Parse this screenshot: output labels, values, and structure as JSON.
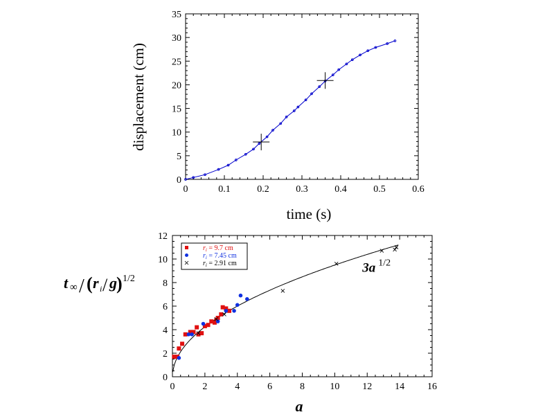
{
  "chart_data": [
    {
      "type": "line",
      "xlabel": "time (s)",
      "ylabel": "displacement (cm)",
      "xlim": [
        0,
        0.6
      ],
      "ylim": [
        0,
        35
      ],
      "x_ticks": [
        "0",
        "0.1",
        "0.2",
        "0.3",
        "0.4",
        "0.5",
        "0.6"
      ],
      "y_ticks": [
        "0",
        "5",
        "10",
        "15",
        "20",
        "25",
        "30",
        "35"
      ],
      "x_tick_values": [
        0,
        0.1,
        0.2,
        0.3,
        0.4,
        0.5,
        0.6
      ],
      "y_tick_values": [
        0,
        5,
        10,
        15,
        20,
        25,
        30,
        35
      ],
      "grid": false,
      "series": [
        {
          "color": "#0000cc",
          "x": [
            0,
            0.02,
            0.05,
            0.085,
            0.11,
            0.13,
            0.155,
            0.175,
            0.19,
            0.21,
            0.225,
            0.245,
            0.26,
            0.28,
            0.29,
            0.31,
            0.325,
            0.345,
            0.36,
            0.38,
            0.395,
            0.415,
            0.43,
            0.45,
            0.47,
            0.49,
            0.52,
            0.54
          ],
          "y": [
            0,
            0.4,
            1.0,
            2.1,
            3.0,
            4.1,
            5.3,
            6.4,
            7.6,
            9.0,
            10.4,
            11.8,
            13.2,
            14.5,
            15.3,
            16.8,
            18.1,
            19.6,
            20.8,
            22.1,
            23.2,
            24.4,
            25.3,
            26.3,
            27.2,
            27.9,
            28.7,
            29.3
          ]
        }
      ],
      "markers": [
        {
          "shape": "plus",
          "x": 0.195,
          "y": 7.9
        },
        {
          "shape": "plus",
          "x": 0.36,
          "y": 20.9
        }
      ]
    },
    {
      "type": "scatter",
      "xlabel": "a",
      "ylabel_parts": {
        "t": "t",
        "inf": "∞",
        "r": "r",
        "i": "i",
        "g": "g",
        "exp": "1/2"
      },
      "xlim": [
        0,
        16
      ],
      "ylim": [
        0,
        12
      ],
      "x_ticks": [
        "0",
        "2",
        "4",
        "6",
        "8",
        "10",
        "12",
        "14",
        "16"
      ],
      "y_ticks": [
        "0",
        "2",
        "4",
        "6",
        "8",
        "10",
        "12"
      ],
      "x_tick_values": [
        0,
        2,
        4,
        6,
        8,
        10,
        12,
        14,
        16
      ],
      "y_tick_values": [
        0,
        2,
        4,
        6,
        8,
        10,
        12
      ],
      "grid": false,
      "legend_position": "top-left",
      "annotation": {
        "text": "3a",
        "exp": "1/2",
        "x": 11.7,
        "y": 8.9
      },
      "fit_curve": {
        "formula": "3a^(1/2)"
      },
      "series": [
        {
          "name_var": "r",
          "name_sub": "i",
          "name_rest": " = 9.7 cm",
          "marker": "square",
          "color": "#e01010",
          "points": [
            [
              0.1,
              1.7
            ],
            [
              0.3,
              1.7
            ],
            [
              0.4,
              2.4
            ],
            [
              0.6,
              2.8
            ],
            [
              0.8,
              3.6
            ],
            [
              1.1,
              3.8
            ],
            [
              1.3,
              3.8
            ],
            [
              1.5,
              4.2
            ],
            [
              1.6,
              3.6
            ],
            [
              1.8,
              3.7
            ],
            [
              2.0,
              4.3
            ],
            [
              2.2,
              4.4
            ],
            [
              2.4,
              4.7
            ],
            [
              2.6,
              4.6
            ],
            [
              2.7,
              4.8
            ],
            [
              2.8,
              5.0
            ],
            [
              3.0,
              5.3
            ],
            [
              3.1,
              5.9
            ],
            [
              3.3,
              5.8
            ],
            [
              3.5,
              5.6
            ]
          ]
        },
        {
          "name_var": "r",
          "name_sub": "i",
          "name_rest": " = 7.45 cm",
          "marker": "circle",
          "color": "#1030e0",
          "points": [
            [
              0.4,
              1.6
            ],
            [
              1.0,
              3.6
            ],
            [
              1.2,
              3.6
            ],
            [
              1.9,
              4.5
            ],
            [
              2.8,
              4.7
            ],
            [
              3.3,
              5.6
            ],
            [
              3.8,
              5.6
            ],
            [
              4.0,
              6.1
            ],
            [
              4.2,
              6.9
            ],
            [
              4.6,
              6.6
            ]
          ]
        },
        {
          "name_var": "r",
          "name_sub": "i",
          "name_rest": " = 2.91 cm",
          "marker": "x",
          "color": "#000000",
          "points": [
            [
              1.6,
              3.7
            ],
            [
              2.7,
              4.9
            ],
            [
              3.2,
              5.3
            ],
            [
              6.8,
              7.3
            ],
            [
              10.1,
              9.6
            ],
            [
              12.9,
              10.7
            ],
            [
              13.7,
              10.8
            ],
            [
              13.8,
              11.0
            ]
          ]
        }
      ]
    }
  ]
}
